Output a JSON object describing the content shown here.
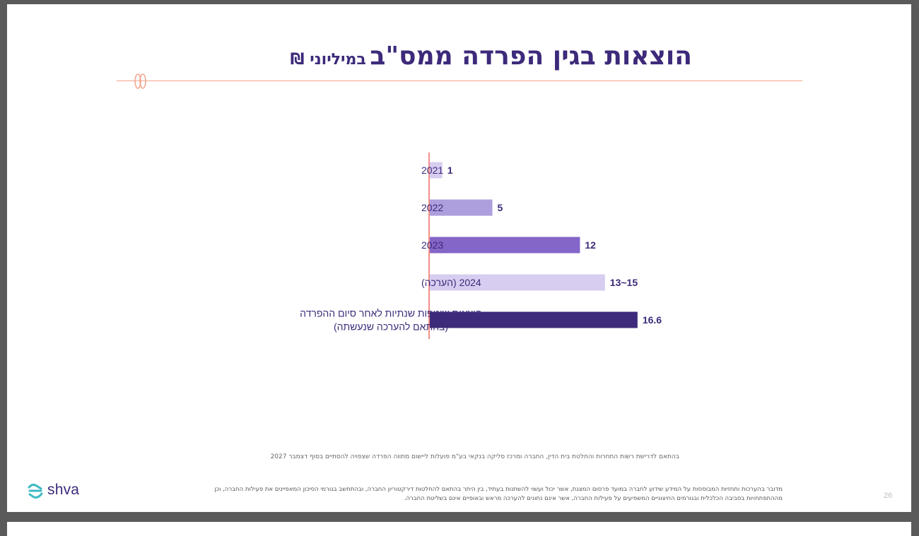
{
  "title": {
    "main": "הוצאות בגין הפרדה ממס\"ב",
    "sub": "במיליוני ₪"
  },
  "chart_data": {
    "type": "bar",
    "orientation": "horizontal",
    "categories": [
      [
        "2021"
      ],
      [
        "2022"
      ],
      [
        "2023"
      ],
      [
        "2024 (הערכה)"
      ],
      [
        "הוצאות שוטפות שנתיות לאחר סיום ההפרדה",
        "(בהתאם להערכה שנעשתה)"
      ]
    ],
    "values": [
      1,
      5,
      12,
      14,
      16.6
    ],
    "value_labels": [
      "1",
      "5",
      "12",
      "13~15",
      "16.6"
    ],
    "colors": [
      "#d6cdf0",
      "#ad9edd",
      "#8465c8",
      "#d6cdf0",
      "#3d2a7a"
    ],
    "xlim": [
      0,
      20
    ],
    "title": "",
    "xlabel": "",
    "ylabel": ""
  },
  "note": "בהתאם לדרישת רשות התחרות והחלטת בית הדין, החברה ומרכז סליקה בנקאי בע\"מ פועלות ליישום מתווה הפרדה שצפויה להסתיים בסוף דצמבר 2027",
  "disclaimer": {
    "line1": "מדובר בהערכות ותחזיות המבוססות על המידע שידוע לחברה במועד פרסום המצגת, אשר יכול ועשוי להשתנות בעתיד, בין היתר בהתאם להחלטות דירקטוריון החברה, ובהתחשב בגורמי הסיכון המאפיינים את פעילות החברה, וכן",
    "line2": "מההתפתחויות בסביבה הכלכלית ובגורמים החיצוניים המשפיעים על פעילות החברה, אשר אינם נתונים להערכה מראש ובאופיים אינם בשליטת החברה."
  },
  "logo": {
    "text": "shva",
    "icon": "shva-logo-icon"
  },
  "page_number": "26",
  "colors": {
    "primary": "#3d2a7a",
    "accent_line": "#f2a48c",
    "axis": "#e8453c"
  }
}
